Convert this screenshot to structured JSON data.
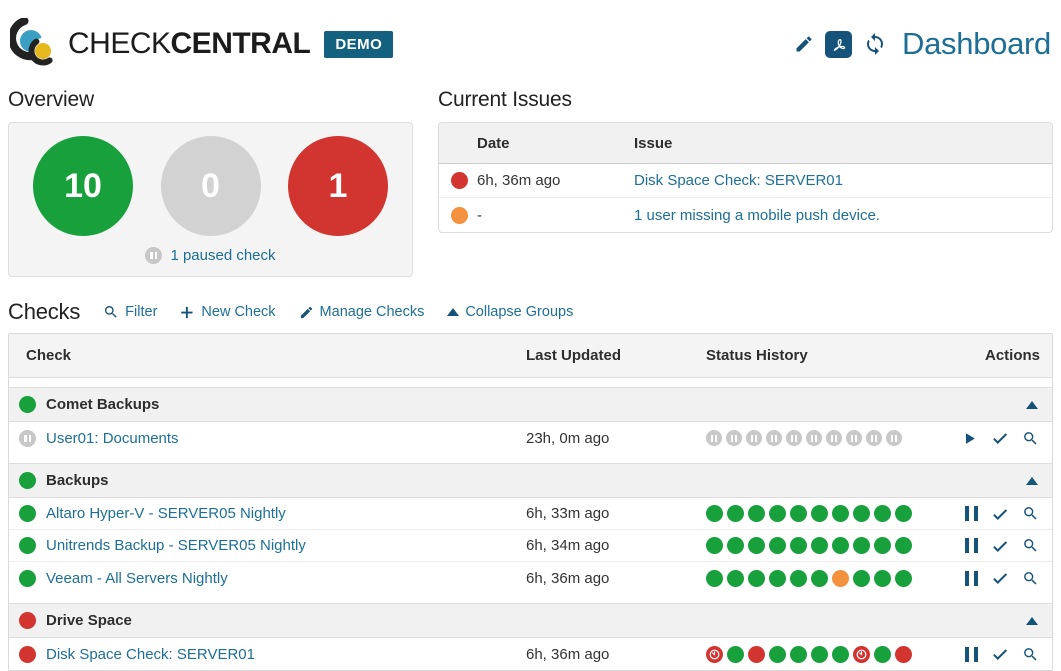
{
  "header": {
    "brand_check": "CHECK",
    "brand_central": "CENTRAL",
    "demo_badge": "DEMO",
    "page_title": "Dashboard",
    "icons": [
      "edit-icon",
      "pdf-export-icon",
      "refresh-icon"
    ]
  },
  "colors": {
    "green": "#18a03c",
    "red": "#d23430",
    "orange": "#f4913e",
    "neutral": "#d2d2d2",
    "link": "#1d6f96",
    "icon": "#15537a"
  },
  "overview": {
    "heading": "Overview",
    "counters": [
      {
        "value": "10",
        "status": "success"
      },
      {
        "value": "0",
        "status": "neutral"
      },
      {
        "value": "1",
        "status": "danger"
      }
    ],
    "paused_link": "1 paused check"
  },
  "current_issues": {
    "heading": "Current Issues",
    "columns": {
      "date": "Date",
      "issue": "Issue"
    },
    "rows": [
      {
        "status": "danger",
        "date": "6h, 36m ago",
        "issue": "Disk Space Check: SERVER01"
      },
      {
        "status": "warning",
        "date": "-",
        "issue": "1 user missing a mobile push device."
      }
    ]
  },
  "checks": {
    "heading": "Checks",
    "toolbar": {
      "filter": "Filter",
      "new_check": "New Check",
      "manage": "Manage Checks",
      "collapse": "Collapse Groups"
    },
    "columns": {
      "check": "Check",
      "last_updated": "Last Updated",
      "status_history": "Status History",
      "actions": "Actions"
    },
    "groups": [
      {
        "name": "Comet Backups",
        "status": "success",
        "rows": [
          {
            "name": "User01: Documents",
            "status": "paused",
            "last_updated": "23h, 0m ago",
            "history": [
              "paused",
              "paused",
              "paused",
              "paused",
              "paused",
              "paused",
              "paused",
              "paused",
              "paused",
              "paused"
            ],
            "primary_action": "resume"
          }
        ]
      },
      {
        "name": "Backups",
        "status": "success",
        "rows": [
          {
            "name": "Altaro Hyper-V - SERVER05 Nightly",
            "status": "success",
            "last_updated": "6h, 33m ago",
            "history": [
              "success",
              "success",
              "success",
              "success",
              "success",
              "success",
              "success",
              "success",
              "success",
              "success"
            ],
            "primary_action": "pause"
          },
          {
            "name": "Unitrends Backup - SERVER05 Nightly",
            "status": "success",
            "last_updated": "6h, 34m ago",
            "history": [
              "success",
              "success",
              "success",
              "success",
              "success",
              "success",
              "success",
              "success",
              "success",
              "success"
            ],
            "primary_action": "pause"
          },
          {
            "name": "Veeam - All Servers Nightly",
            "status": "success",
            "last_updated": "6h, 36m ago",
            "history": [
              "success",
              "success",
              "success",
              "success",
              "success",
              "success",
              "warning",
              "success",
              "success",
              "success"
            ],
            "primary_action": "pause"
          }
        ]
      },
      {
        "name": "Drive Space",
        "status": "danger",
        "rows": [
          {
            "name": "Disk Space Check: SERVER01",
            "status": "danger",
            "last_updated": "6h, 36m ago",
            "history": [
              "danger-late",
              "success",
              "danger",
              "success",
              "success",
              "success",
              "success",
              "danger-late",
              "success",
              "danger"
            ],
            "primary_action": "pause"
          }
        ]
      }
    ]
  }
}
